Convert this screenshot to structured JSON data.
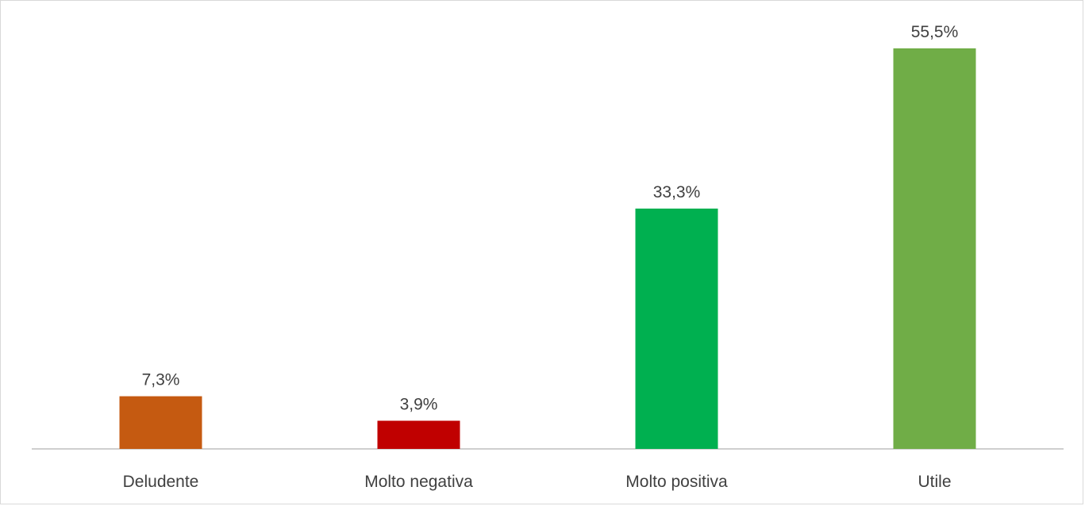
{
  "chart_data": {
    "type": "bar",
    "categories": [
      "Deludente",
      "Molto negativa",
      "Molto positiva",
      "Utile"
    ],
    "values": [
      7.3,
      3.9,
      33.3,
      55.5
    ],
    "value_labels": [
      "7,3%",
      "3,9%",
      "33,3%",
      "55,5%"
    ],
    "colors": [
      "#c55a11",
      "#c00000",
      "#00b050",
      "#70ad47"
    ],
    "title": "",
    "xlabel": "",
    "ylabel": "",
    "ylim": [
      0,
      60
    ],
    "grid": false,
    "legend": "none",
    "axis_color": "#bfbfbf"
  }
}
